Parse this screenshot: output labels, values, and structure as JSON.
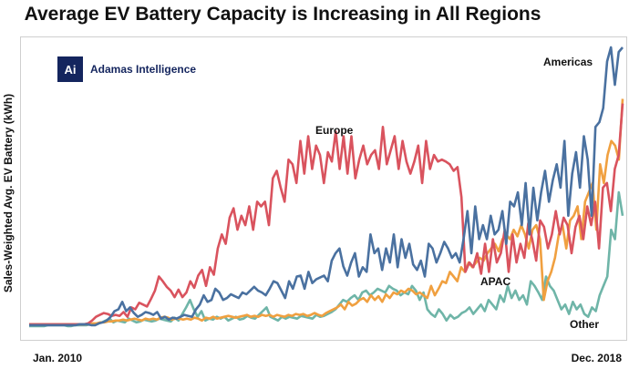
{
  "chart_data": {
    "type": "line",
    "title": "Average EV Battery Capacity is Increasing in All Regions",
    "ylabel": "Sales-Weighted Avg. EV Battery (kWh)",
    "xlabel": "",
    "x_start_label": "Jan. 2010",
    "x_end_label": "Dec. 2018",
    "grid": false,
    "source": "Adamas Intelligence",
    "logo_mark": "Ai",
    "annotations": [
      {
        "text": "Americas",
        "series": "Americas"
      },
      {
        "text": "Europe",
        "series": "Europe"
      },
      {
        "text": "APAC",
        "series": "APAC"
      },
      {
        "text": "Other",
        "series": "Other"
      }
    ],
    "series": [
      {
        "name": "Europe",
        "color": "#d9535e",
        "values": [
          4,
          4,
          4,
          4,
          4,
          4,
          4,
          4,
          4,
          4,
          4,
          4,
          4,
          4,
          4,
          5,
          8,
          12,
          14,
          16,
          15,
          13,
          14,
          13,
          17,
          12,
          22,
          20,
          27,
          25,
          23,
          31,
          40,
          55,
          50,
          44,
          40,
          33,
          41,
          33,
          38,
          50,
          43,
          56,
          62,
          45,
          65,
          57,
          85,
          100,
          90,
          118,
          128,
          105,
          120,
          110,
          130,
          105,
          135,
          130,
          135,
          110,
          160,
          168,
          150,
          135,
          180,
          175,
          155,
          200,
          165,
          205,
          170,
          195,
          185,
          155,
          188,
          178,
          210,
          170,
          205,
          165,
          205,
          160,
          180,
          195,
          175,
          185,
          190,
          170,
          215,
          175,
          190,
          205,
          170,
          200,
          178,
          165,
          178,
          195,
          155,
          200,
          170,
          185,
          178,
          180,
          178,
          175,
          168,
          172,
          140,
          60,
          70,
          65,
          80,
          58,
          90,
          60,
          95,
          70,
          80,
          105,
          60,
          100,
          70,
          90,
          75,
          112,
          95,
          72,
          115,
          108,
          85,
          100,
          125,
          100,
          118,
          110,
          80,
          108,
          120,
          95,
          130,
          110,
          135,
          85,
          150,
          155,
          125,
          170,
          185,
          240
        ]
      },
      {
        "name": "Americas",
        "color": "#4a71a0",
        "values": [
          3,
          3,
          3,
          3,
          3,
          3,
          3,
          3,
          3,
          3,
          3,
          3,
          3,
          4,
          4,
          4,
          3,
          3,
          5,
          6,
          8,
          12,
          18,
          20,
          28,
          18,
          22,
          16,
          12,
          14,
          17,
          16,
          14,
          17,
          10,
          12,
          9,
          11,
          10,
          12,
          14,
          13,
          12,
          20,
          25,
          35,
          28,
          30,
          42,
          38,
          30,
          32,
          36,
          34,
          32,
          38,
          36,
          40,
          44,
          40,
          38,
          35,
          42,
          50,
          48,
          40,
          32,
          50,
          42,
          55,
          56,
          42,
          60,
          48,
          52,
          54,
          56,
          50,
          72,
          80,
          85,
          66,
          56,
          70,
          80,
          55,
          65,
          60,
          100,
          80,
          85,
          62,
          85,
          70,
          100,
          65,
          95,
          75,
          90,
          68,
          62,
          72,
          55,
          90,
          85,
          70,
          80,
          92,
          85,
          75,
          80,
          70,
          95,
          125,
          80,
          130,
          95,
          110,
          95,
          120,
          100,
          105,
          125,
          90,
          135,
          130,
          145,
          110,
          155,
          100,
          150,
          115,
          145,
          168,
          135,
          158,
          175,
          150,
          200,
          120,
          165,
          188,
          150,
          205,
          180,
          120,
          215,
          220,
          235,
          285,
          300,
          260,
          295,
          300
        ]
      },
      {
        "name": "APAC",
        "color": "#f0a040",
        "values": [
          4,
          4,
          4,
          4,
          4,
          4,
          4,
          4,
          4,
          4,
          4,
          4,
          4,
          4,
          4,
          4,
          4,
          5,
          5,
          6,
          6,
          7,
          7,
          8,
          8,
          9,
          8,
          9,
          10,
          9,
          8,
          10,
          9,
          10,
          9,
          11,
          12,
          11,
          9,
          10,
          10,
          9,
          10,
          9,
          11,
          10,
          8,
          11,
          10,
          12,
          10,
          11,
          12,
          13,
          12,
          11,
          12,
          13,
          14,
          12,
          13,
          12,
          14,
          13,
          14,
          12,
          14,
          13,
          12,
          14,
          13,
          15,
          14,
          15,
          13,
          14,
          16,
          14,
          13,
          16,
          18,
          20,
          22,
          25,
          20,
          28,
          24,
          26,
          30,
          32,
          28,
          35,
          30,
          34,
          28,
          36,
          32,
          38,
          36,
          40,
          38,
          42,
          40,
          36,
          38,
          35,
          32,
          45,
          35,
          42,
          50,
          48,
          60,
          55,
          50,
          65,
          60,
          70,
          65,
          70,
          75,
          72,
          80,
          85,
          90,
          82,
          95,
          100,
          95,
          105,
          98,
          110,
          100,
          85,
          105,
          110,
          95,
          30,
          50,
          60,
          75,
          100,
          110,
          85,
          115,
          120,
          130,
          95,
          135,
          145,
          155,
          105,
          175,
          155,
          185,
          200,
          195,
          180,
          245
        ]
      },
      {
        "name": "Other",
        "color": "#6fb5a8",
        "values": [
          2,
          2,
          2,
          2,
          2,
          3,
          3,
          3,
          3,
          3,
          2,
          2,
          3,
          3,
          3,
          3,
          4,
          4,
          5,
          6,
          8,
          10,
          6,
          8,
          7,
          6,
          10,
          8,
          6,
          7,
          9,
          8,
          7,
          8,
          10,
          9,
          8,
          7,
          11,
          8,
          15,
          22,
          30,
          20,
          12,
          18,
          8,
          10,
          9,
          12,
          10,
          12,
          8,
          10,
          12,
          9,
          10,
          13,
          11,
          10,
          14,
          18,
          22,
          12,
          10,
          8,
          12,
          10,
          12,
          11,
          10,
          13,
          12,
          11,
          10,
          14,
          12,
          13,
          15,
          17,
          20,
          25,
          30,
          28,
          32,
          35,
          30,
          38,
          40,
          35,
          38,
          42,
          40,
          38,
          45,
          42,
          40,
          35,
          38,
          36,
          45,
          40,
          30,
          38,
          20,
          15,
          12,
          20,
          15,
          8,
          14,
          10,
          12,
          16,
          18,
          22,
          15,
          20,
          25,
          18,
          30,
          25,
          20,
          35,
          28,
          45,
          32,
          40,
          30,
          35,
          25,
          50,
          45,
          38,
          30,
          55,
          45,
          40,
          30,
          20,
          25,
          15,
          28,
          20,
          25,
          15,
          12,
          22,
          18,
          35,
          45,
          55,
          105,
          95,
          145,
          120
        ]
      }
    ]
  }
}
